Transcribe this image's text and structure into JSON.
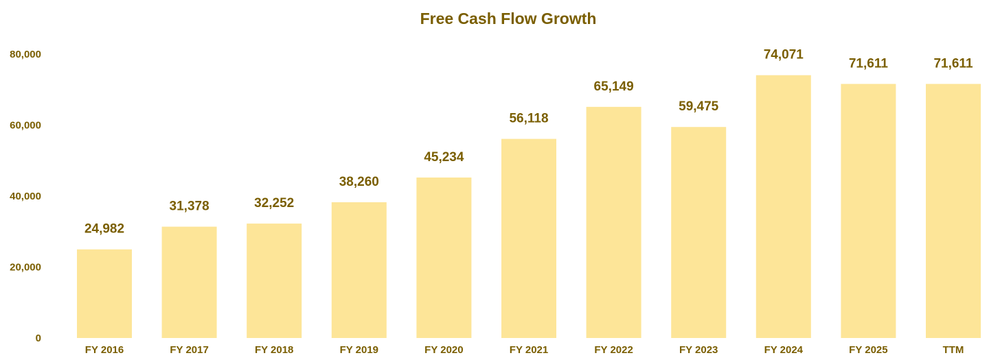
{
  "chart_data": {
    "type": "bar",
    "title": "Free Cash Flow Growth",
    "categories": [
      "FY 2016",
      "FY 2017",
      "FY 2018",
      "FY 2019",
      "FY 2020",
      "FY 2021",
      "FY 2022",
      "FY 2023",
      "FY 2024",
      "FY 2025",
      "TTM"
    ],
    "values": [
      24982,
      31378,
      32252,
      38260,
      45234,
      56118,
      65149,
      59475,
      74071,
      71611,
      71611
    ],
    "data_labels": [
      "24,982",
      "31,378",
      "32,252",
      "38,260",
      "45,234",
      "56,118",
      "65,149",
      "59,475",
      "74,071",
      "71,611",
      "71,611"
    ],
    "y_ticks": [
      0,
      20000,
      40000,
      60000,
      80000
    ],
    "y_tick_labels": [
      "0",
      "20,000",
      "40,000",
      "60,000",
      "80,000"
    ],
    "ylim": [
      0,
      80000
    ],
    "xlabel": "",
    "ylabel": "",
    "grid": false,
    "legend": "none",
    "bar_color": "#fde598",
    "text_color": "#7a5e00"
  }
}
